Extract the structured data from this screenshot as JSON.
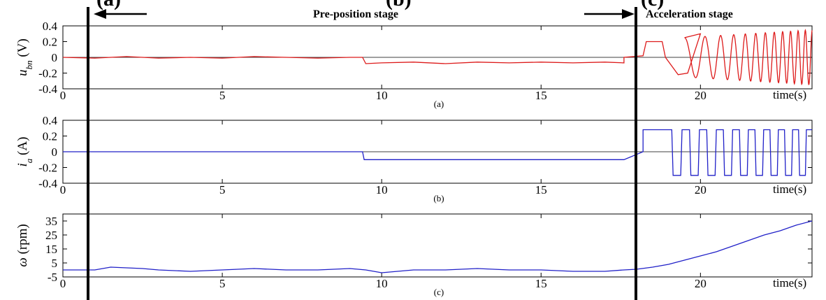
{
  "header": {
    "clipped_text_left": "(a)",
    "clipped_text_mid": "(b)",
    "clipped_text_right": "(c)",
    "pre_position_label": "Pre-position stage",
    "acceleration_label": "Acceleration stage"
  },
  "colors": {
    "red": "#dd1a1a",
    "blue": "#2020c8",
    "axis": "#000000"
  },
  "chart_data": [
    {
      "type": "line",
      "panel": "(a)",
      "ylabel_main": "u",
      "ylabel_sub": "bn",
      "ylabel_unit": "(V)",
      "xlabel": "time(s)",
      "xlim": [
        0,
        23.5
      ],
      "ylim": [
        -0.4,
        0.4
      ],
      "xticks": [
        "0",
        "5",
        "10",
        "15",
        "20"
      ],
      "xtick_values": [
        0,
        5,
        10,
        15,
        20
      ],
      "yticks": [
        "0.4",
        "0.2",
        "0",
        "-0.2",
        "-0.4"
      ],
      "ytick_values": [
        0.4,
        0.2,
        0,
        -0.2,
        -0.4
      ],
      "color": "red",
      "series": [
        {
          "segment": "pre-position",
          "x": [
            0,
            1,
            2,
            3,
            4,
            5,
            6,
            7,
            8,
            9,
            9.4,
            9.5,
            10,
            11,
            12,
            13,
            14,
            15,
            16,
            17,
            17.6
          ],
          "values": [
            0,
            -0.01,
            0.01,
            -0.01,
            0.0,
            -0.01,
            0.01,
            0.0,
            -0.01,
            0.0,
            0.0,
            -0.08,
            -0.07,
            -0.06,
            -0.08,
            -0.06,
            -0.07,
            -0.06,
            -0.07,
            -0.06,
            -0.07
          ]
        },
        {
          "segment": "acceleration",
          "x": [
            17.6,
            18.2,
            18.3,
            18.8,
            18.9,
            19.3,
            19.6,
            20.0
          ],
          "values": [
            0,
            0.02,
            0.2,
            0.2,
            0.0,
            -0.22,
            -0.2,
            0.3
          ]
        }
      ],
      "oscillation": {
        "x_start": 19.5,
        "x_end": 23.5,
        "cycles": 9,
        "amp_start": 0.25,
        "amp_end": 0.35
      }
    },
    {
      "type": "line",
      "panel": "(b)",
      "ylabel_main": "i",
      "ylabel_sub": "a",
      "ylabel_unit": "(A)",
      "xlabel": "time(s)",
      "xlim": [
        0,
        23.5
      ],
      "ylim": [
        -0.4,
        0.4
      ],
      "xticks": [
        "0",
        "5",
        "10",
        "15",
        "20"
      ],
      "xtick_values": [
        0,
        5,
        10,
        15,
        20
      ],
      "yticks": [
        "0.4",
        "0.2",
        "0",
        "-0.2",
        "-0.4"
      ],
      "ytick_values": [
        0.4,
        0.2,
        0,
        -0.2,
        -0.4
      ],
      "color": "blue",
      "series": [
        {
          "segment": "pre-position",
          "x": [
            0,
            9.4,
            9.45,
            17.6
          ],
          "values": [
            0,
            0,
            -0.1,
            -0.1
          ]
        }
      ],
      "square_wave": {
        "x_start": 17.6,
        "first_high_start": 18.2,
        "first_high_end": 19.1,
        "x_end": 23.5,
        "high": 0.28,
        "low": -0.3,
        "cycles": 9
      }
    },
    {
      "type": "line",
      "panel": "(c)",
      "ylabel_main": "ω",
      "ylabel_unit": "(rpm)",
      "xlabel": "time(s)",
      "xlim": [
        0,
        23.5
      ],
      "ylim": [
        -5,
        40
      ],
      "xticks": [
        "0",
        "5",
        "10",
        "15",
        "20"
      ],
      "xtick_values": [
        0,
        5,
        10,
        15,
        20
      ],
      "yticks": [
        "35",
        "25",
        "15",
        "5",
        "-5"
      ],
      "ytick_values": [
        35,
        25,
        15,
        5,
        -5
      ],
      "color": "blue",
      "series": [
        {
          "segment": "full",
          "x": [
            0,
            1,
            1.5,
            2.5,
            3,
            4,
            5,
            6,
            7,
            8,
            9,
            9.5,
            10,
            11,
            12,
            13,
            14,
            15,
            16,
            17,
            17.6,
            18,
            18.5,
            19,
            19.5,
            20,
            20.5,
            21,
            21.5,
            22,
            22.5,
            23,
            23.5
          ],
          "values": [
            0,
            0,
            2,
            1,
            0,
            -1,
            0,
            1,
            0,
            0,
            1,
            0,
            -2,
            0,
            0,
            1,
            0,
            0,
            -1,
            -1,
            0,
            0.5,
            2,
            4,
            7,
            10,
            13,
            17,
            21,
            25,
            28,
            32,
            35
          ]
        }
      ]
    }
  ]
}
